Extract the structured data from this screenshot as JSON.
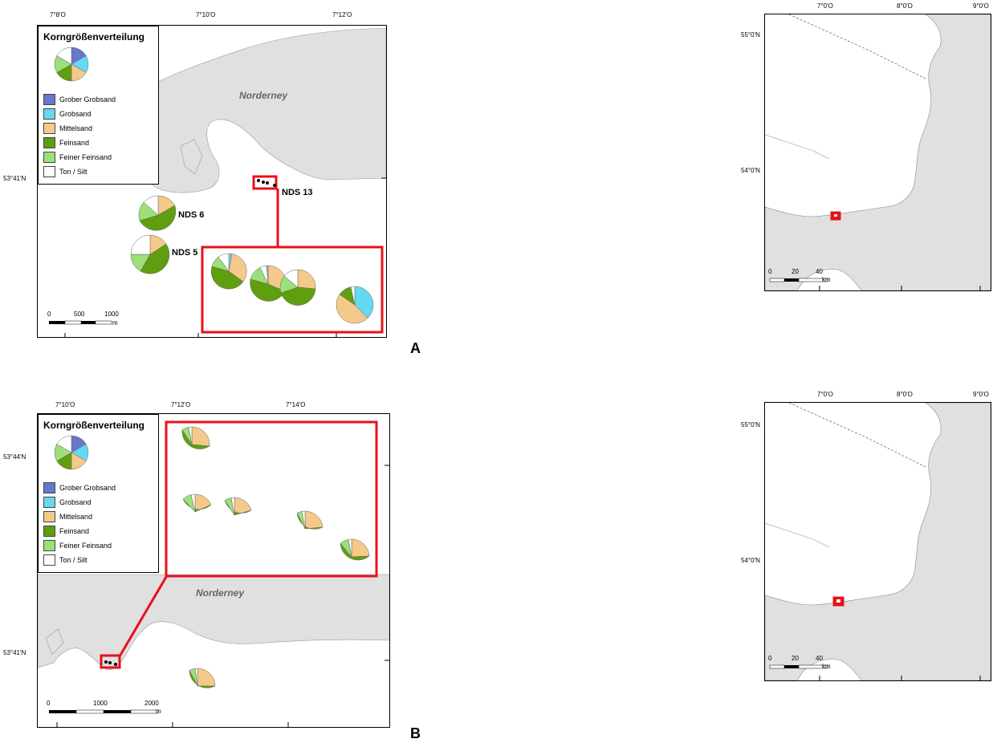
{
  "panels": [
    {
      "letter": "A",
      "legend": {
        "title": "Korngrößenverteilung",
        "items": [
          {
            "label": "Grober Grobsand",
            "color": "#6677cc"
          },
          {
            "label": "Grobsand",
            "color": "#66d9f2"
          },
          {
            "label": "Mittelsand",
            "color": "#f5c98a"
          },
          {
            "label": "Feinsand",
            "color": "#5f9e0f"
          },
          {
            "label": "Feiner Feinsand",
            "color": "#9be07a"
          },
          {
            "label": "Ton / Silt",
            "color": "#ffffff"
          }
        ]
      },
      "top_ticks": [
        "7°8'O",
        "7°10'O",
        "7°12'O"
      ],
      "left_ticks": [
        "53°41'N"
      ],
      "island": "Norderney",
      "stations": [
        "NDS 6",
        "NDS 5",
        "NDS 13"
      ],
      "scale": {
        "labels": [
          "0",
          "500",
          "1000"
        ],
        "unit": "m"
      }
    },
    {
      "letter": "B",
      "legend": {
        "title": "Korngrößenverteilung",
        "items": [
          {
            "label": "Grober Grobsand",
            "color": "#6677cc"
          },
          {
            "label": "Grobsand",
            "color": "#66d9f2"
          },
          {
            "label": "Mittelsand",
            "color": "#f5c98a"
          },
          {
            "label": "Feinsand",
            "color": "#5f9e0f"
          },
          {
            "label": "Feiner Feinsand",
            "color": "#9be07a"
          },
          {
            "label": "Ton / Silt",
            "color": "#ffffff"
          }
        ]
      },
      "top_ticks": [
        "7°10'O",
        "7°12'O",
        "7°14'O"
      ],
      "left_ticks": [
        "53°44'N",
        "53°41'N"
      ],
      "island": "Norderney",
      "scale": {
        "labels": [
          "0",
          "1000",
          "2000"
        ],
        "unit": "m"
      }
    }
  ],
  "overview_maps": [
    {
      "top_ticks": [
        "7°0'O",
        "8°0'O",
        "9°0'O"
      ],
      "left_ticks": [
        "55°0'N",
        "54°0'N"
      ],
      "scale": {
        "labels": [
          "0",
          "20",
          "40"
        ],
        "unit": "km"
      }
    },
    {
      "top_ticks": [
        "7°0'O",
        "8°0'O",
        "9°0'O"
      ],
      "left_ticks": [
        "55°0'N",
        "54°0'N"
      ],
      "scale": {
        "labels": [
          "0",
          "20",
          "40"
        ],
        "unit": "km"
      }
    }
  ],
  "colors": {
    "land": "#e0e0e0",
    "highlight": "#e8101a",
    "coarse_coarse_sand": "#6677cc",
    "coarse_sand": "#66d9f2",
    "medium_sand": "#f5c98a",
    "fine_sand": "#5f9e0f",
    "fine_fine_sand": "#9be07a",
    "clay_silt": "#ffffff"
  }
}
